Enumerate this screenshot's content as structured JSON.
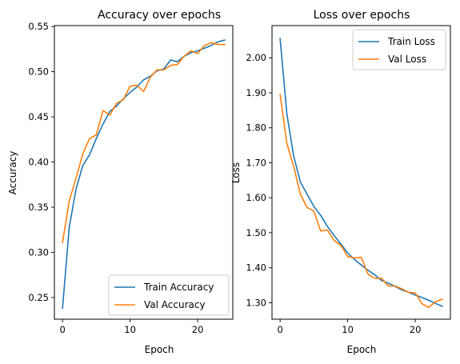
{
  "colors": {
    "train": "#1f77b4",
    "val": "#ff7f0e"
  },
  "chart_data": [
    {
      "type": "line",
      "title": "Accuracy over epochs",
      "xlabel": "Epoch",
      "ylabel": "Accuracy",
      "xlim": [
        -1.2,
        25.2
      ],
      "ylim": [
        0.226,
        0.551
      ],
      "xticks": [
        0,
        10,
        20
      ],
      "yticks": [
        0.25,
        0.3,
        0.35,
        0.4,
        0.45,
        0.5,
        0.55
      ],
      "legend": "lower-right",
      "x": [
        0,
        1,
        2,
        3,
        4,
        5,
        6,
        7,
        8,
        9,
        10,
        11,
        12,
        13,
        14,
        15,
        16,
        17,
        18,
        19,
        20,
        21,
        22,
        23,
        24
      ],
      "series": [
        {
          "name": "Train Accuracy",
          "color": "#1f77b4",
          "values": [
            0.238,
            0.328,
            0.37,
            0.396,
            0.408,
            0.426,
            0.442,
            0.456,
            0.462,
            0.47,
            0.477,
            0.483,
            0.491,
            0.495,
            0.501,
            0.503,
            0.513,
            0.511,
            0.517,
            0.521,
            0.523,
            0.526,
            0.529,
            0.533,
            0.535
          ]
        },
        {
          "name": "Val Accuracy",
          "color": "#ff7f0e",
          "values": [
            0.311,
            0.357,
            0.382,
            0.409,
            0.426,
            0.43,
            0.457,
            0.452,
            0.465,
            0.469,
            0.484,
            0.485,
            0.478,
            0.494,
            0.502,
            0.502,
            0.507,
            0.508,
            0.517,
            0.523,
            0.52,
            0.529,
            0.532,
            0.53,
            0.53
          ]
        }
      ]
    },
    {
      "type": "line",
      "title": "Loss over epochs",
      "xlabel": "Epoch",
      "ylabel": "Loss",
      "xlim": [
        -1.2,
        25.2
      ],
      "ylim": [
        1.253,
        2.092
      ],
      "xticks": [
        0,
        10,
        20
      ],
      "yticks": [
        1.3,
        1.4,
        1.5,
        1.6,
        1.7,
        1.8,
        1.9,
        2.0
      ],
      "legend": "top-right",
      "x": [
        0,
        1,
        2,
        3,
        4,
        5,
        6,
        7,
        8,
        9,
        10,
        11,
        12,
        13,
        14,
        15,
        16,
        17,
        18,
        19,
        20,
        21,
        22,
        23,
        24
      ],
      "series": [
        {
          "name": "Train Loss",
          "color": "#1f77b4",
          "values": [
            2.055,
            1.84,
            1.72,
            1.645,
            1.61,
            1.575,
            1.55,
            1.518,
            1.492,
            1.468,
            1.442,
            1.424,
            1.408,
            1.393,
            1.38,
            1.364,
            1.356,
            1.347,
            1.337,
            1.33,
            1.322,
            1.315,
            1.307,
            1.298,
            1.29
          ]
        },
        {
          "name": "Val Loss",
          "color": "#ff7f0e",
          "values": [
            1.895,
            1.755,
            1.69,
            1.61,
            1.572,
            1.562,
            1.505,
            1.508,
            1.478,
            1.464,
            1.432,
            1.428,
            1.43,
            1.382,
            1.37,
            1.37,
            1.348,
            1.348,
            1.34,
            1.33,
            1.328,
            1.297,
            1.287,
            1.303,
            1.31
          ]
        }
      ]
    }
  ]
}
